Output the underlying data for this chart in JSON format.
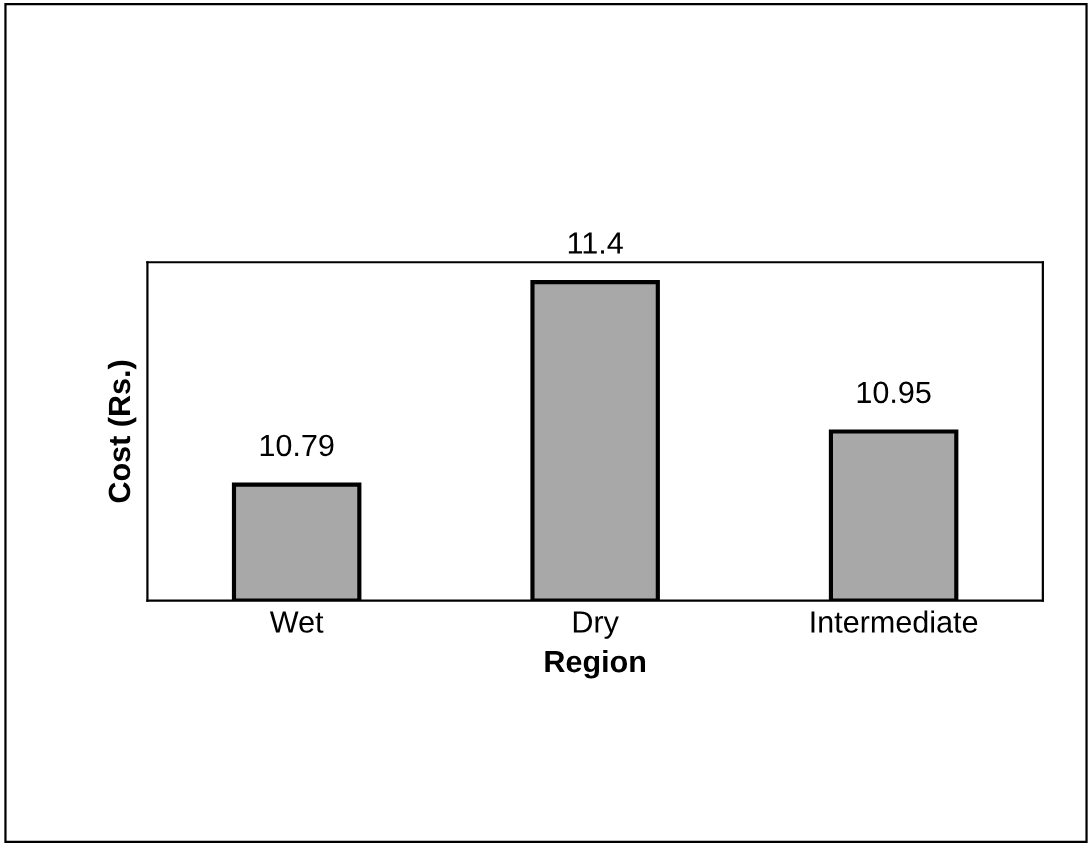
{
  "chart_data": {
    "type": "bar",
    "xlabel": "Region",
    "ylabel": "Cost (Rs.)",
    "categories": [
      "Wet",
      "Dry",
      "Intermediate"
    ],
    "values": [
      10.79,
      11.4,
      10.95
    ],
    "color": "#a8a8a8",
    "ylim": [
      10.44,
      11.46
    ],
    "data_labels": true,
    "tick_labels": "x",
    "grid": false
  }
}
